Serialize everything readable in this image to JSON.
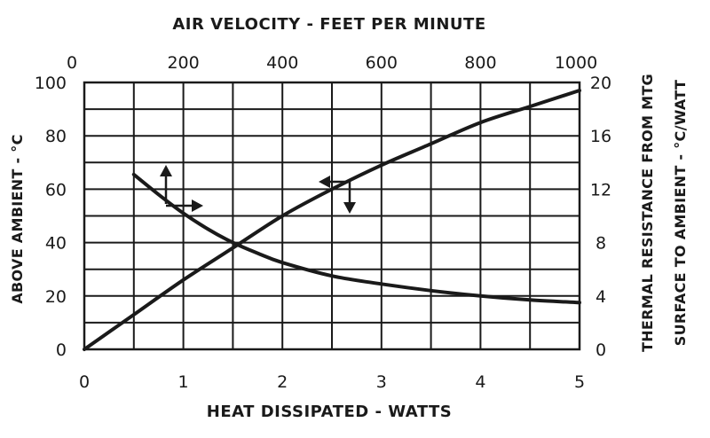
{
  "chart_data": {
    "type": "line",
    "title": "AIR VELOCITY - FEET PER MINUTE",
    "xlabel": "HEAT DISSIPATED - WATTS",
    "ylabel": "ABOVE AMBIENT - °C",
    "ylabel_right": [
      "THERMAL RESISTANCE FROM MTG",
      "SURFACE TO AMBIENT - °C/WATT"
    ],
    "xlim": [
      0,
      5
    ],
    "ylim": [
      0,
      100
    ],
    "x2lim": [
      0,
      1000
    ],
    "y2lim": [
      0,
      20
    ],
    "x_ticks": [
      0,
      1,
      2,
      3,
      4,
      5
    ],
    "y_ticks": [
      0,
      20,
      40,
      60,
      80,
      100
    ],
    "x2_ticks": [
      0,
      200,
      400,
      600,
      800,
      1000
    ],
    "y2_ticks": [
      0,
      4,
      8,
      12,
      16,
      20
    ],
    "grid": true,
    "series": [
      {
        "axes": "bottom-left",
        "x": [
          0,
          0.5,
          1.0,
          1.5,
          2.0,
          2.5,
          3.0,
          3.5,
          4.0,
          4.5,
          5.0
        ],
        "y": [
          0,
          13,
          26,
          38,
          50,
          60,
          69,
          77,
          85,
          91,
          97
        ]
      },
      {
        "axes": "top-right",
        "x": [
          100,
          150,
          200,
          250,
          300,
          350,
          400,
          500,
          600,
          700,
          800,
          900,
          1000
        ],
        "y": [
          13.1,
          11.6,
          10.2,
          9.0,
          8.0,
          7.2,
          6.5,
          5.5,
          4.9,
          4.4,
          4.0,
          3.7,
          3.5
        ]
      }
    ]
  }
}
